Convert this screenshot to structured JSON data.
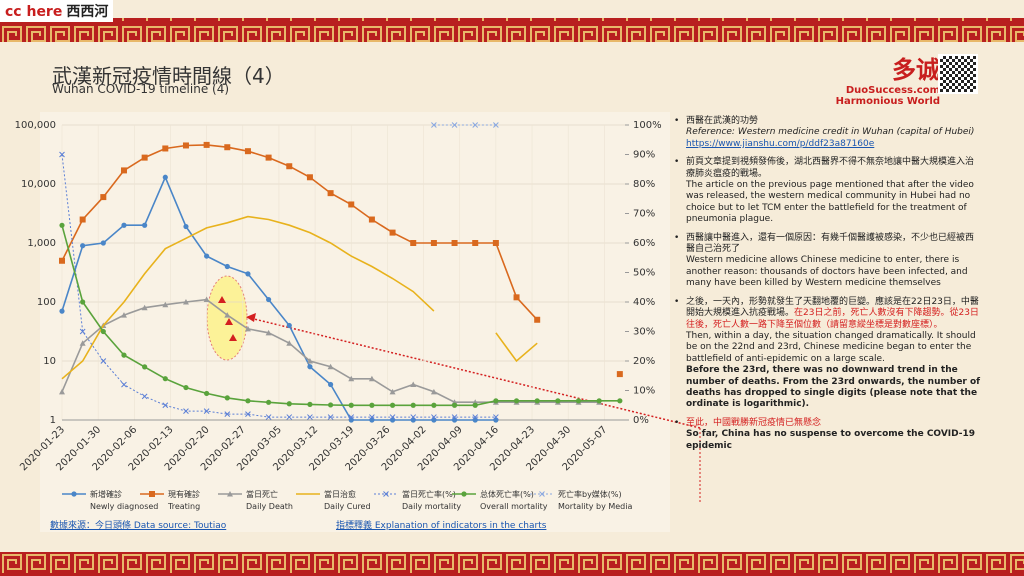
{
  "header": {
    "badge": "cc here",
    "badge_zh": "西西河",
    "title": "武漢新冠疫情時間線（4）",
    "subtitle": "Wuhan COVID-19 timeline (4)",
    "logo_zh": "多诚",
    "logo_site": "DuoSuccess.com",
    "logo_tag": "Harmonious World"
  },
  "chart_data": {
    "type": "line",
    "log_scale": true,
    "x": [
      "2020-01-23",
      "2020-01-27",
      "2020-01-31",
      "2020-02-04",
      "2020-02-08",
      "2020-02-12",
      "2020-02-16",
      "2020-02-20",
      "2020-02-24",
      "2020-02-28",
      "2020-03-03",
      "2020-03-07",
      "2020-03-11",
      "2020-03-15",
      "2020-03-19",
      "2020-03-23",
      "2020-03-27",
      "2020-03-31",
      "2020-04-04",
      "2020-04-08",
      "2020-04-12",
      "2020-04-16",
      "2020-04-20",
      "2020-04-24",
      "2020-04-28",
      "2020-05-02",
      "2020-05-06",
      "2020-05-10"
    ],
    "xlim": [
      "2020-01-23",
      "2020-05-11"
    ],
    "xticks": [
      "2020-01-23",
      "2020-01-30",
      "2020-02-06",
      "2020-02-13",
      "2020-02-20",
      "2020-02-27",
      "2020-03-05",
      "2020-03-12",
      "2020-03-19",
      "2020-03-26",
      "2020-04-02",
      "2020-04-09",
      "2020-04-16",
      "2020-04-23",
      "2020-04-30",
      "2020-05-07"
    ],
    "ylim": [
      1,
      100000
    ],
    "yticks": [
      {
        "value": 100000,
        "label": "100,000"
      },
      {
        "value": 10000,
        "label": "10,000"
      },
      {
        "value": 1000,
        "label": "1,000"
      },
      100,
      10,
      1
    ],
    "y2lim": [
      0,
      100
    ],
    "y2ticks": [
      {
        "value": 100,
        "label": "100%"
      },
      {
        "value": 90,
        "label": "90%"
      },
      {
        "value": 80,
        "label": "80%"
      },
      {
        "value": 70,
        "label": "70%"
      },
      {
        "value": 60,
        "label": "60%"
      },
      {
        "value": 50,
        "label": "50%"
      },
      {
        "value": 40,
        "label": "40%"
      },
      {
        "value": 30,
        "label": "30%"
      },
      {
        "value": 20,
        "label": "20%"
      },
      {
        "value": 10,
        "label": "10%"
      },
      {
        "value": 0,
        "label": "0%"
      }
    ],
    "series": [
      {
        "name": "新增確診",
        "label_en": "Newly diagnosed",
        "color": "#4a86c8",
        "marker": "circle",
        "values": [
          70,
          900,
          1000,
          2000,
          2000,
          13000,
          1900,
          600,
          400,
          300,
          110,
          40,
          8,
          4,
          1,
          1,
          1,
          1,
          1,
          1,
          1,
          1,
          null,
          null,
          null,
          null,
          null,
          null
        ]
      },
      {
        "name": "現有確診",
        "label_en": "Treating",
        "color": "#d9691e",
        "marker": "square",
        "values": [
          500,
          2500,
          6000,
          17000,
          28000,
          40000,
          45000,
          46000,
          42000,
          36000,
          28000,
          20000,
          13000,
          7000,
          4500,
          2500,
          1500,
          1000,
          1000,
          1000,
          1000,
          1000,
          120,
          50,
          null,
          null,
          null,
          6
        ]
      },
      {
        "name": "當日死亡",
        "label_en": "Daily Death",
        "color": "#9a9a9a",
        "marker": "triangle",
        "values": [
          3,
          20,
          40,
          60,
          80,
          90,
          100,
          110,
          60,
          35,
          30,
          20,
          10,
          8,
          5,
          5,
          3,
          4,
          3,
          2,
          2,
          2,
          2,
          2,
          2,
          2,
          2,
          null
        ]
      },
      {
        "name": "當日治愈",
        "label_en": "Daily Cured",
        "color": "#e8b21c",
        "marker": "none",
        "values": [
          5,
          10,
          40,
          100,
          300,
          800,
          1200,
          1800,
          2200,
          2800,
          2500,
          2000,
          1500,
          1000,
          600,
          400,
          250,
          150,
          70,
          null,
          null,
          30,
          10,
          20,
          null,
          null,
          null,
          null
        ]
      },
      {
        "name": "當日死亡率(%)",
        "label_en": "Daily mortality",
        "color": "#5b7fd6",
        "marker": "x",
        "dash": true,
        "axis": "y2",
        "values": [
          90,
          30,
          20,
          12,
          8,
          5,
          3,
          3,
          2,
          2,
          1,
          1,
          1,
          1,
          1,
          1,
          1,
          1,
          1,
          1,
          1,
          1,
          null,
          null,
          null,
          null,
          null,
          null
        ]
      },
      {
        "name": "总体死亡率(%)",
        "label_en": "Overall mortality",
        "color": "#5aa33c",
        "marker": "circle",
        "axis": "y2",
        "values": [
          66,
          40,
          30,
          22,
          18,
          14,
          11,
          9,
          7.5,
          6.5,
          6,
          5.5,
          5.3,
          5.1,
          5,
          5,
          5,
          5,
          5,
          5,
          5,
          6.5,
          6.5,
          6.5,
          6.5,
          6.5,
          6.5,
          6.5
        ]
      },
      {
        "name": "死亡率by媒体(%)",
        "label_en": "Mortality by Media",
        "color": "#8aa8e0",
        "marker": "x",
        "dash": true,
        "axis": "y2",
        "values": [
          null,
          null,
          null,
          null,
          null,
          null,
          null,
          null,
          null,
          null,
          null,
          null,
          null,
          null,
          null,
          null,
          null,
          null,
          100,
          100,
          100,
          100,
          null,
          null,
          null,
          null,
          null,
          null
        ]
      }
    ]
  },
  "source": "數據來源：今日頭條 Data source: Toutiao",
  "explain": "指標釋義 Explanation of indicators in the charts",
  "notes": [
    {
      "zh": "西醫在武漢的功勞",
      "en": "Reference: Western medicine credit in Wuhan (capital of Hubei)",
      "link": "https://www.jianshu.com/p/ddf23a87160e"
    },
    {
      "zh": "前頁文章提到視頻發佈後，湖北西醫界不得不無奈地讓中醫大規模進入治療肺炎瘟疫的戰場。",
      "en": "The article on the previous page mentioned that after the video was released, the western medical community in Hubei had no choice but to let TCM enter the battlefield for the treatment of pneumonia plague."
    },
    {
      "zh": "西醫讓中醫進入，還有一個原因：有幾千個醫護被感染，不少也已經被西醫自己治死了",
      "en": "Western medicine allows Chinese medicine to enter, there is another reason: thousands of doctors have been infected, and many have been killed by Western medicine themselves"
    },
    {
      "zh": "之後，一天內，形勢就發生了天翻地覆的巨變。應該是在22日23日，中醫開始大規模進入抗疫戰場。",
      "zh_red": "在23日之前，死亡人數沒有下降趨勢。從23日往後，死亡人數一路下降至個位數（請留意縱坐標是對數座標）。",
      "en": "Then, within a day, the situation changed dramatically. It should be on the 22nd and 23rd, Chinese medicine began to enter the battlefield of anti-epidemic on a large scale.",
      "en_bold": "Before the 23rd, there was no downward trend in the number of deaths. From the 23rd onwards, the number of deaths has dropped to single digits (please note that the ordinate is logarithmic)."
    },
    {
      "zh_red": "至此，中國戰勝新冠疫情已無懸念",
      "en_bold": "So far, China has no suspense to overcome the COVID-19 epidemic"
    }
  ]
}
